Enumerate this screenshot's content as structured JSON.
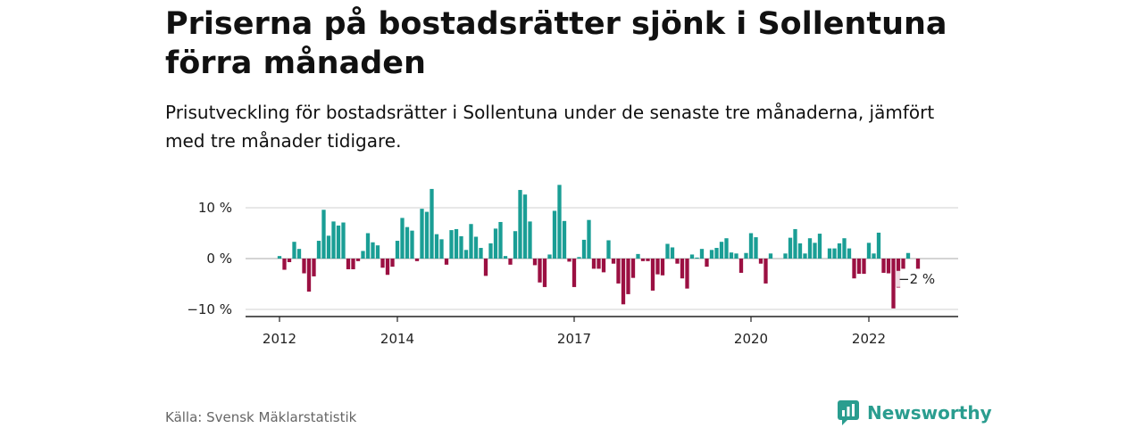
{
  "title": "Priserna på bostadsrätter sjönk i Sollentuna förra månaden",
  "subtitle": "Prisutveckling för bostadsrätter i Sollentuna under de senaste tre månaderna, jämfört med tre månader tidigare.",
  "source": "Källa: Svensk Mäklarstatistik",
  "logo": {
    "name": "Newsworthy",
    "icon": "newsworthy-logo-icon"
  },
  "colors": {
    "positive": "#1a9e95",
    "negative": "#9b1042",
    "grid": "#d9d9d9",
    "axis": "#222222"
  },
  "chart_data": {
    "type": "bar",
    "x_start": "2012-01",
    "x_end": "2023-03",
    "x_ticks": [
      "2012",
      "2014",
      "2017",
      "2020",
      "2022"
    ],
    "y_ticks": [
      "10 %",
      "0 %",
      "−10 %"
    ],
    "ylim": [
      -12,
      15
    ],
    "grid": true,
    "annotation": {
      "text": "−2 %",
      "target": "last"
    },
    "values": [
      0.5,
      -2.2,
      -0.7,
      3.3,
      1.9,
      -2.9,
      -6.5,
      -3.5,
      3.5,
      9.6,
      4.5,
      7.3,
      6.5,
      7.1,
      -2.1,
      -2.1,
      -0.5,
      1.5,
      5.0,
      3.2,
      2.6,
      -1.8,
      -3.2,
      -1.6,
      3.5,
      8.0,
      6.2,
      5.5,
      -0.5,
      9.8,
      9.2,
      13.7,
      4.8,
      3.8,
      -1.2,
      5.6,
      5.8,
      4.4,
      1.7,
      6.8,
      4.3,
      2.1,
      -3.4,
      3.0,
      5.9,
      7.2,
      0.5,
      -1.2,
      5.4,
      13.5,
      12.6,
      7.3,
      -1.3,
      -4.7,
      -5.6,
      0.8,
      9.4,
      14.5,
      7.4,
      -0.6,
      -5.6,
      0.3,
      3.7,
      7.6,
      -2.0,
      -2.0,
      -2.7,
      3.6,
      -1.0,
      -4.9,
      -9.0,
      -7.0,
      -3.8,
      0.9,
      -0.5,
      -0.5,
      -6.3,
      -3.1,
      -3.3,
      2.9,
      2.2,
      -1.0,
      -3.9,
      -5.9,
      0.8,
      0.2,
      1.9,
      -1.6,
      1.7,
      2.1,
      3.3,
      4.0,
      1.2,
      1.0,
      -2.8,
      1.1,
      5.0,
      4.2,
      -1.0,
      -4.9,
      1.0,
      0.0,
      0.0,
      1.0,
      4.1,
      5.8,
      3.0,
      1.0,
      4.0,
      3.1,
      4.9,
      0.0,
      2.0,
      2.0,
      3.0,
      4.0,
      2.0,
      -3.9,
      -3.0,
      -3.0,
      3.1,
      1.0,
      5.1,
      -2.8,
      -2.9,
      -9.8,
      -5.7,
      -2.0,
      1.1,
      0.0,
      -2.0
    ]
  }
}
